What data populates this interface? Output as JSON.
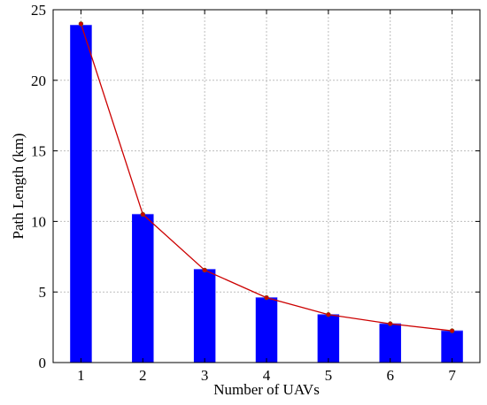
{
  "chart_data": {
    "type": "bar",
    "x": [
      1,
      2,
      3,
      4,
      5,
      6,
      7
    ],
    "xticks": [
      "1",
      "2",
      "3",
      "4",
      "5",
      "6",
      "7"
    ],
    "yticks": [
      "0",
      "5",
      "10",
      "15",
      "20",
      "25"
    ],
    "xlabel": "Number of UAVs",
    "ylabel": "Path Length (km)",
    "xlim": [
      0.55,
      7.45
    ],
    "ylim": [
      0,
      25
    ],
    "grid": true,
    "series": [
      {
        "type": "bar",
        "values": [
          23.9,
          10.5,
          6.6,
          4.6,
          3.4,
          2.75,
          2.25
        ],
        "color": "#0000ff"
      },
      {
        "type": "line",
        "values": [
          24.0,
          10.5,
          6.55,
          4.6,
          3.4,
          2.75,
          2.25
        ],
        "color": "#cc0000",
        "marker_color": "#cc0000"
      }
    ]
  }
}
